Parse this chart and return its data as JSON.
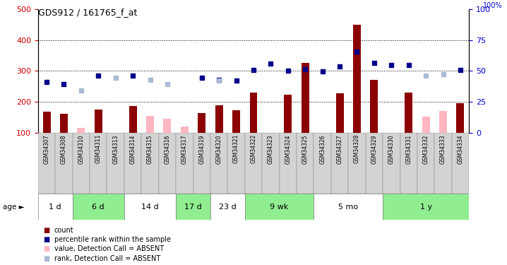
{
  "title": "GDS912 / 161765_f_at",
  "samples": [
    "GSM34307",
    "GSM34308",
    "GSM34310",
    "GSM34311",
    "GSM34313",
    "GSM34314",
    "GSM34315",
    "GSM34316",
    "GSM34317",
    "GSM34319",
    "GSM34320",
    "GSM34321",
    "GSM34322",
    "GSM34323",
    "GSM34324",
    "GSM34325",
    "GSM34326",
    "GSM34327",
    "GSM34328",
    "GSM34329",
    "GSM34330",
    "GSM34331",
    "GSM34332",
    "GSM34333",
    "GSM34334"
  ],
  "count_present": [
    168,
    160,
    null,
    175,
    null,
    185,
    null,
    null,
    null,
    162,
    188,
    172,
    230,
    null,
    223,
    325,
    null,
    228,
    450,
    270,
    null,
    230,
    null,
    null,
    195
  ],
  "count_absent": [
    null,
    null,
    115,
    null,
    null,
    null,
    155,
    145,
    120,
    null,
    null,
    null,
    null,
    null,
    null,
    null,
    null,
    null,
    null,
    null,
    null,
    null,
    152,
    170,
    null
  ],
  "rank_present": [
    263,
    258,
    null,
    285,
    null,
    285,
    null,
    null,
    null,
    278,
    270,
    268,
    302,
    323,
    301,
    305,
    298,
    314,
    363,
    325,
    318,
    320,
    null,
    null,
    303
  ],
  "rank_absent": [
    null,
    null,
    237,
    null,
    278,
    null,
    270,
    258,
    null,
    null,
    268,
    null,
    null,
    null,
    null,
    null,
    null,
    null,
    null,
    null,
    null,
    null,
    285,
    290,
    null
  ],
  "age_groups": [
    {
      "label": "1 d",
      "start": 0,
      "end": 2,
      "color": "#FFFFFF"
    },
    {
      "label": "6 d",
      "start": 2,
      "end": 5,
      "color": "#90EE90"
    },
    {
      "label": "14 d",
      "start": 5,
      "end": 8,
      "color": "#FFFFFF"
    },
    {
      "label": "17 d",
      "start": 8,
      "end": 10,
      "color": "#90EE90"
    },
    {
      "label": "23 d",
      "start": 10,
      "end": 12,
      "color": "#FFFFFF"
    },
    {
      "label": "9 wk",
      "start": 12,
      "end": 16,
      "color": "#90EE90"
    },
    {
      "label": "5 mo",
      "start": 16,
      "end": 20,
      "color": "#FFFFFF"
    },
    {
      "label": "1 y",
      "start": 20,
      "end": 25,
      "color": "#90EE90"
    }
  ],
  "ylim_left": [
    100,
    500
  ],
  "ylim_right": [
    0,
    100
  ],
  "yticks_left": [
    100,
    200,
    300,
    400,
    500
  ],
  "yticks_right": [
    0,
    25,
    50,
    75,
    100
  ],
  "ytick_dotted": [
    200,
    300,
    400
  ],
  "color_count_present": "#8B0000",
  "color_count_absent": "#FFB6C1",
  "color_rank_present": "#00008B",
  "color_rank_absent": "#AABBD4",
  "bg_color_plot": "#FFFFFF",
  "bar_width": 0.45,
  "sample_bg_color": "#D3D3D3",
  "legend": [
    {
      "color": "#8B0000",
      "label": "count"
    },
    {
      "color": "#00008B",
      "label": "percentile rank within the sample"
    },
    {
      "color": "#FFB6C1",
      "label": "value, Detection Call = ABSENT"
    },
    {
      "color": "#AABBD4",
      "label": "rank, Detection Call = ABSENT"
    }
  ]
}
